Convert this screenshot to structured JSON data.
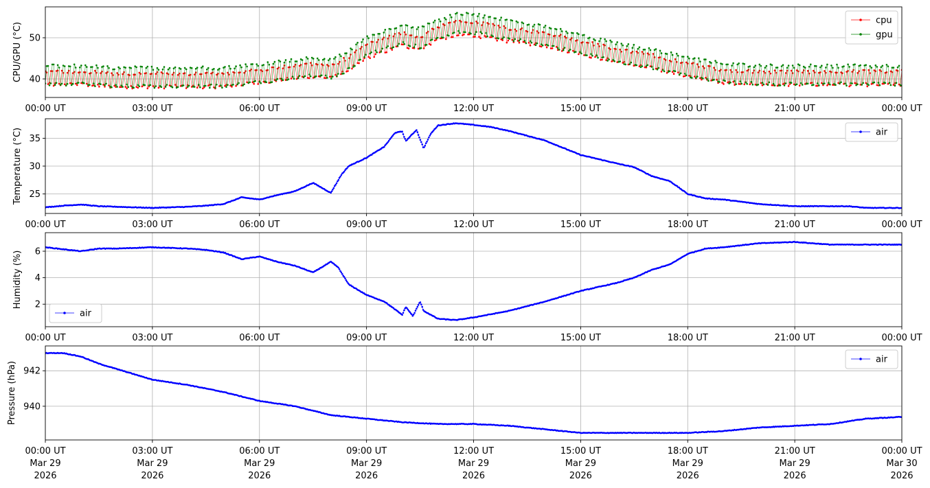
{
  "figure": {
    "x_tick_labels": [
      "00:00 UT",
      "03:00 UT",
      "06:00 UT",
      "09:00 UT",
      "12:00 UT",
      "15:00 UT",
      "18:00 UT",
      "21:00 UT",
      "00:00 UT"
    ],
    "bottom_date_labels": [
      [
        "Mar 29",
        "2026"
      ],
      [
        "Mar 29",
        "2026"
      ],
      [
        "Mar 29",
        "2026"
      ],
      [
        "Mar 29",
        "2026"
      ],
      [
        "Mar 29",
        "2026"
      ],
      [
        "Mar 29",
        "2026"
      ],
      [
        "Mar 29",
        "2026"
      ],
      [
        "Mar 29",
        "2026"
      ],
      [
        "Mar 30",
        "2026"
      ]
    ]
  },
  "chart_data": [
    {
      "type": "line",
      "ylabel": "CPU/GPU (°C)",
      "xlim": [
        "2026-03-29 00:00 UT",
        "2026-03-30 00:00 UT"
      ],
      "ylim": [
        35.5,
        57.5
      ],
      "y_ticks": [
        40,
        50
      ],
      "grid": true,
      "legend_position": "upper-right",
      "x_hours": [
        0,
        1,
        2,
        3,
        4,
        5,
        6,
        7,
        7.5,
        8,
        8.5,
        9,
        10,
        10.5,
        11,
        11.5,
        12,
        13,
        14,
        15,
        16,
        17,
        18,
        19,
        20,
        21,
        22,
        23,
        24
      ],
      "series": [
        {
          "name": "cpu",
          "color": "#ff0000",
          "values": [
            39.5,
            39.5,
            39,
            39,
            39,
            39,
            40,
            41,
            41.5,
            41,
            43,
            46,
            49,
            48,
            50.5,
            51.5,
            51.5,
            50,
            49,
            47,
            45,
            43.5,
            41.5,
            40,
            39.5,
            39.5,
            39.5,
            39.5,
            39.5
          ],
          "spread": 2.5
        },
        {
          "name": "gpu",
          "color": "#008000",
          "values": [
            40,
            40,
            39.5,
            39.5,
            39.5,
            39.5,
            40.5,
            41.5,
            42,
            41.5,
            43.5,
            47,
            50,
            49,
            51,
            52.5,
            52.5,
            51,
            49.5,
            47.5,
            45.5,
            44,
            42,
            40.5,
            40,
            40,
            40,
            40,
            40
          ],
          "spread": 3.5
        }
      ]
    },
    {
      "type": "line",
      "ylabel": "Temperature (°C)",
      "xlim": [
        "2026-03-29 00:00 UT",
        "2026-03-30 00:00 UT"
      ],
      "ylim": [
        21.5,
        38.5
      ],
      "y_ticks": [
        25,
        30,
        35
      ],
      "grid": true,
      "legend_position": "upper-right",
      "x_hours": [
        0,
        0.5,
        1,
        1.5,
        2,
        3,
        4,
        4.5,
        5,
        5.5,
        6,
        6.5,
        7,
        7.5,
        8,
        8.3,
        8.5,
        9,
        9.5,
        9.8,
        10,
        10.1,
        10.4,
        10.6,
        10.8,
        11,
        11.5,
        12,
        12.5,
        13,
        14,
        15,
        16,
        16.5,
        17,
        17.5,
        18,
        18.5,
        19,
        20,
        21,
        22,
        22.5,
        23,
        24
      ],
      "series": [
        {
          "name": "air",
          "color": "#0000ff",
          "values": [
            22.6,
            22.9,
            23.1,
            22.8,
            22.7,
            22.5,
            22.7,
            22.9,
            23.2,
            24.4,
            24,
            24.8,
            25.5,
            27.0,
            25.2,
            28.5,
            30.0,
            31.5,
            33.5,
            36.0,
            36.2,
            34.5,
            36.5,
            33.2,
            35.8,
            37.3,
            37.7,
            37.4,
            37.0,
            36.3,
            34.6,
            32.0,
            30.5,
            29.8,
            28.2,
            27.3,
            25.0,
            24.2,
            24.0,
            23.2,
            22.8,
            22.8,
            22.8,
            22.5,
            22.5
          ]
        }
      ]
    },
    {
      "type": "line",
      "ylabel": "Humidity (%)",
      "xlim": [
        "2026-03-29 00:00 UT",
        "2026-03-30 00:00 UT"
      ],
      "ylim": [
        0.3,
        7.4
      ],
      "y_ticks": [
        2,
        4,
        6
      ],
      "grid": true,
      "legend_position": "lower-left",
      "x_hours": [
        0,
        1,
        1.5,
        2,
        3,
        4,
        4.5,
        5,
        5.5,
        6,
        6.5,
        7,
        7.5,
        8,
        8.2,
        8.5,
        9,
        9.5,
        9.8,
        10,
        10.1,
        10.3,
        10.5,
        10.6,
        11,
        11.5,
        12,
        13,
        14,
        15,
        16,
        16.5,
        17,
        17.5,
        18,
        18.5,
        19,
        20,
        21,
        22,
        23,
        24
      ],
      "series": [
        {
          "name": "air",
          "color": "#0000ff",
          "values": [
            6.3,
            6.0,
            6.2,
            6.2,
            6.3,
            6.2,
            6.1,
            5.9,
            5.4,
            5.6,
            5.2,
            4.9,
            4.4,
            5.2,
            4.8,
            3.5,
            2.7,
            2.2,
            1.6,
            1.2,
            1.8,
            1.1,
            2.2,
            1.5,
            0.9,
            0.8,
            1.0,
            1.5,
            2.2,
            3.0,
            3.6,
            4.0,
            4.6,
            5.0,
            5.8,
            6.2,
            6.3,
            6.6,
            6.7,
            6.5,
            6.5,
            6.5
          ]
        }
      ]
    },
    {
      "type": "line",
      "ylabel": "Pressure (hPa)",
      "xlim": [
        "2026-03-29 00:00 UT",
        "2026-03-30 00:00 UT"
      ],
      "ylim": [
        938.1,
        943.4
      ],
      "y_ticks": [
        940,
        942
      ],
      "grid": true,
      "legend_position": "upper-right",
      "x_hours": [
        0,
        0.5,
        1,
        1.5,
        2,
        2.5,
        3,
        4,
        5,
        6,
        7,
        8,
        9,
        10,
        11,
        12,
        13,
        14,
        15,
        16,
        17,
        18,
        19,
        20,
        21,
        22,
        23,
        24
      ],
      "series": [
        {
          "name": "air",
          "color": "#0000ff",
          "values": [
            943.0,
            943.0,
            942.8,
            942.4,
            942.1,
            941.8,
            941.5,
            941.2,
            940.8,
            940.3,
            940.0,
            939.5,
            939.3,
            939.1,
            939.0,
            939.0,
            938.9,
            938.7,
            938.5,
            938.5,
            938.5,
            938.5,
            938.6,
            938.8,
            938.9,
            939.0,
            939.3,
            939.4
          ]
        }
      ]
    }
  ]
}
